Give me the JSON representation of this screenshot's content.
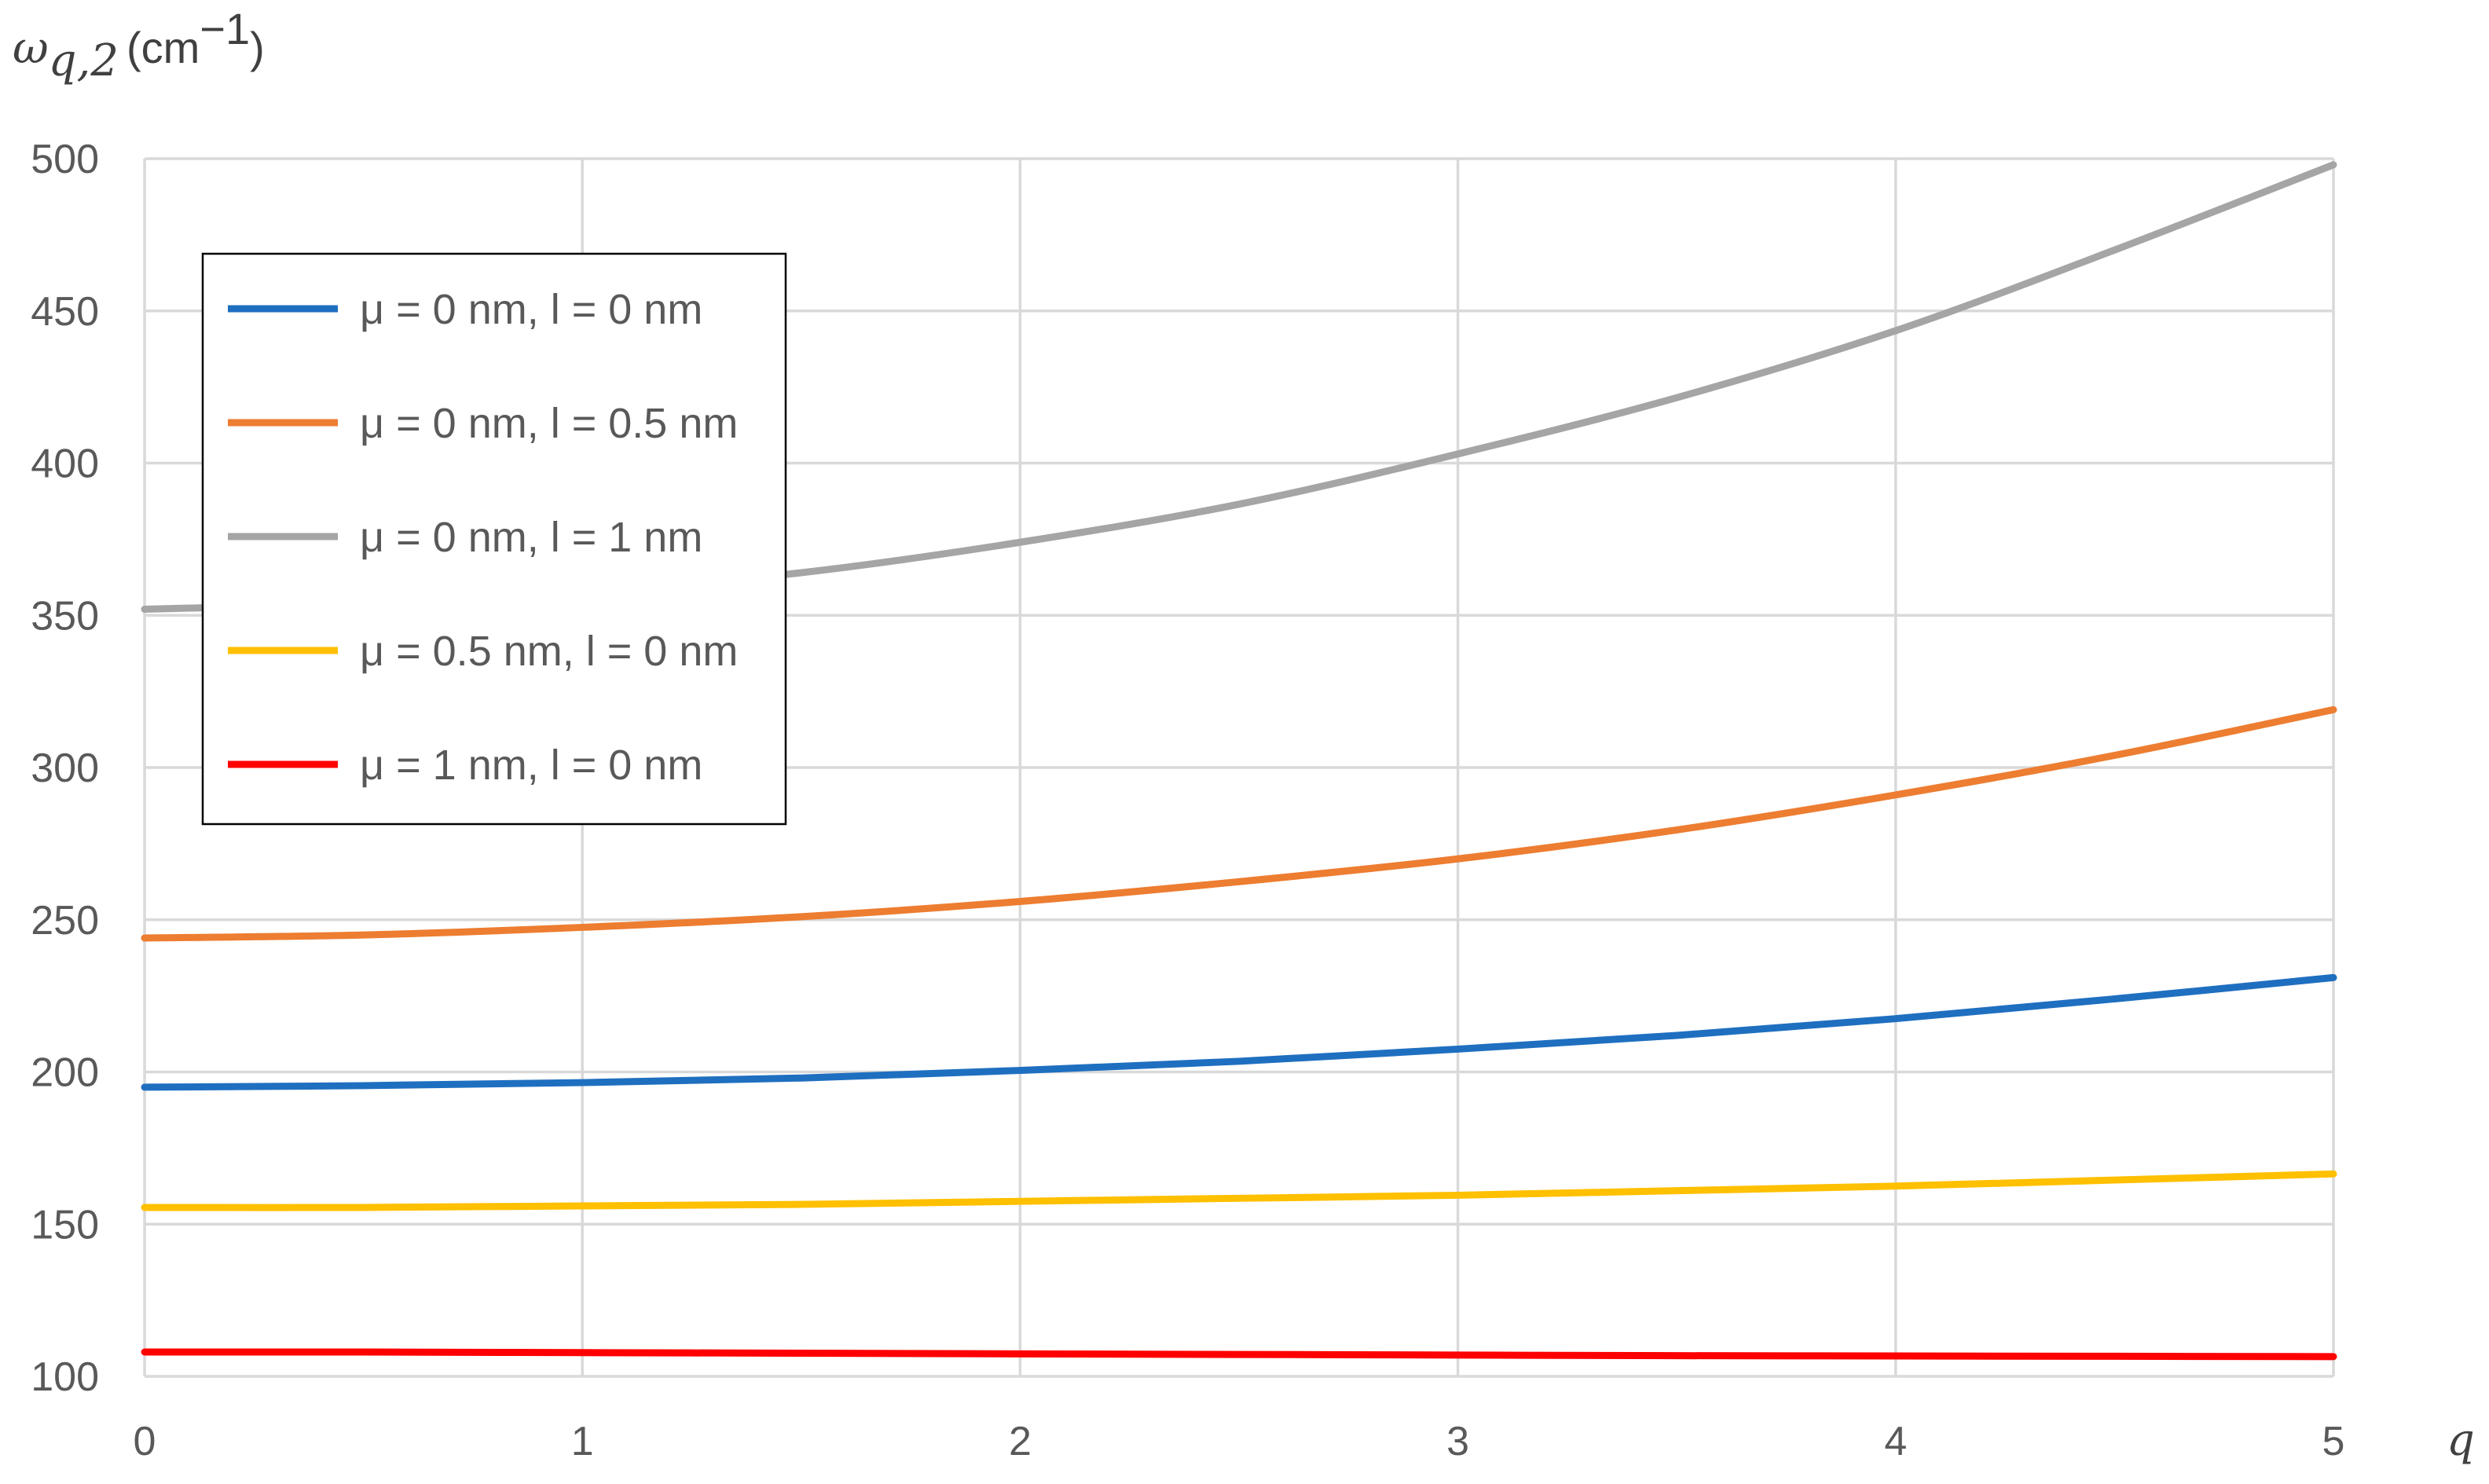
{
  "chart_data": {
    "type": "line",
    "ylabel": {
      "symbol": "ω",
      "subscript": "q,2",
      "unit": "(cm",
      "unit_exp": "−1",
      "unit_close": ")"
    },
    "xlabel": "q",
    "xlim": [
      0,
      5
    ],
    "ylim": [
      100,
      500
    ],
    "x_ticks": [
      "0",
      "1",
      "2",
      "3",
      "4",
      "5"
    ],
    "y_ticks": [
      "100",
      "150",
      "200",
      "250",
      "300",
      "350",
      "400",
      "450",
      "500"
    ],
    "grid": true,
    "legend_position": "top-left",
    "x": [
      0,
      0.5,
      1,
      1.5,
      2,
      2.5,
      3,
      3.5,
      4,
      4.5,
      5
    ],
    "series": [
      {
        "name": "μ = 0 nm, l = 0 nm",
        "color": "#1f6fc0",
        "values": [
          195,
          195.5,
          196.5,
          198,
          200.5,
          203.5,
          207.5,
          212,
          217.5,
          224,
          231
        ]
      },
      {
        "name": "μ = 0 nm, l = 0.5 nm",
        "color": "#ed7d31",
        "values": [
          244,
          245,
          247.5,
          251,
          256,
          262.5,
          270,
          279.5,
          291,
          304,
          319
        ]
      },
      {
        "name": "μ = 0 nm, l = 1 nm",
        "color": "#a5a5a5",
        "values": [
          352,
          354,
          357.5,
          364,
          374,
          386.5,
          403,
          421.5,
          443.5,
          470,
          498
        ]
      },
      {
        "name": "μ = 0.5 nm, l = 0 nm",
        "color": "#ffc000",
        "values": [
          155.5,
          155.5,
          156,
          156.5,
          157.5,
          158.5,
          159.5,
          161,
          162.5,
          164.5,
          166.5
        ]
      },
      {
        "name": "μ = 1 nm, l = 0 nm",
        "color": "#ff0000",
        "values": [
          108,
          108,
          107.8,
          107.6,
          107.4,
          107.2,
          107,
          106.8,
          106.7,
          106.6,
          106.5
        ]
      }
    ]
  }
}
